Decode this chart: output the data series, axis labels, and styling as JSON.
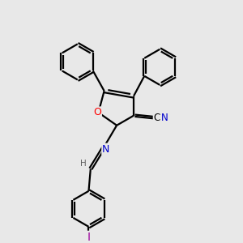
{
  "bg_color": "#e8e8e8",
  "atom_colors": {
    "C": "#000000",
    "N": "#0000cd",
    "O": "#ff0000",
    "I": "#9b009b",
    "H": "#606060"
  },
  "bond_color": "#000000",
  "bond_width": 1.6,
  "figsize": [
    3.0,
    3.0
  ],
  "dpi": 100
}
